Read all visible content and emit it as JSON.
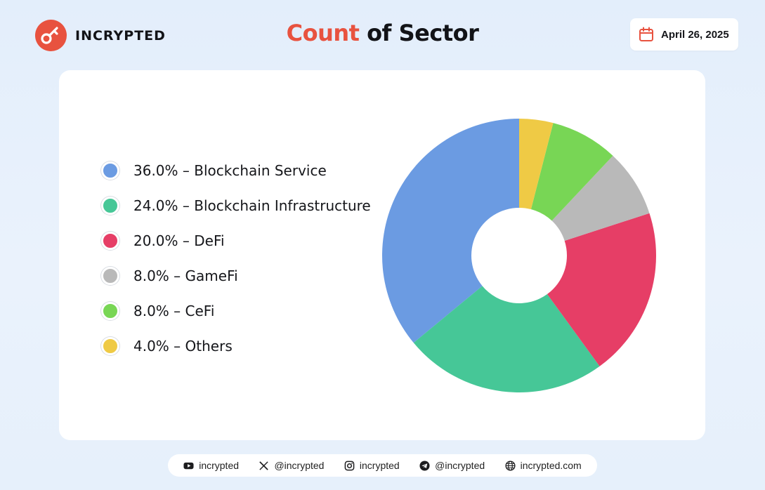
{
  "header": {
    "logo_text": "INCRYPTED",
    "title_accent": "Count",
    "title_rest": " of Sector",
    "date": "April 26, 2025"
  },
  "chart_data": {
    "type": "pie",
    "title": "Count of Sector",
    "legend_placement": "left",
    "donut": true,
    "start_angle_deg": 0,
    "direction": "counterclockwise",
    "labels": [
      "36.0% – Blockchain Service",
      "24.0% – Blockchain Infrastructure",
      "20.0% – DeFi",
      "8.0% – GameFi",
      "8.0% – CeFi",
      "4.0% – Others"
    ],
    "categories": [
      "Blockchain Service",
      "Blockchain Infrastructure",
      "DeFi",
      "GameFi",
      "CeFi",
      "Others"
    ],
    "values": [
      36.0,
      24.0,
      20.0,
      8.0,
      8.0,
      4.0
    ],
    "colors": [
      "#6b9be2",
      "#46c797",
      "#e63e66",
      "#b9b9b9",
      "#78d655",
      "#efca45"
    ]
  },
  "footer": {
    "items": [
      {
        "icon": "youtube-icon",
        "label": "incrypted"
      },
      {
        "icon": "x-icon",
        "label": "@incrypted"
      },
      {
        "icon": "instagram-icon",
        "label": "incrypted"
      },
      {
        "icon": "telegram-icon",
        "label": "@incrypted"
      },
      {
        "icon": "globe-icon",
        "label": "incrypted.com"
      }
    ]
  }
}
